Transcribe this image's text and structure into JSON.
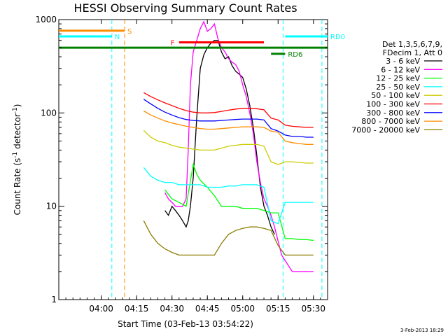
{
  "chart_data": {
    "type": "line",
    "title": "HESSI Observing Summary Count Rates",
    "xlabel": "Start Time (03-Feb-13 03:54:22)",
    "ylabel": "Count Rate (s",
    "ylabel_sup": "-1",
    "ylabel_tail": " detector",
    "ylabel_sup2": "-1",
    "ylabel_end": ")",
    "ylog": true,
    "ylim": [
      1,
      1000
    ],
    "yticks": [
      {
        "v": 1,
        "label": "1"
      },
      {
        "v": 10,
        "label": "10"
      },
      {
        "v": 100,
        "label": "100"
      },
      {
        "v": 1000,
        "label": "1000"
      }
    ],
    "xlim": [
      -6,
      32
    ],
    "xticks": [
      {
        "v": 0,
        "label": "04:00"
      },
      {
        "v": 5,
        "label": "04:15"
      },
      {
        "v": 10,
        "label": "04:30"
      },
      {
        "v": 15,
        "label": "04:45"
      },
      {
        "v": 20,
        "label": "05:00"
      },
      {
        "v": 25,
        "label": "05:15"
      },
      {
        "v": 30,
        "label": "05:30"
      }
    ],
    "legend": {
      "header": [
        "Det 1,3,5,6,7,9,",
        "FDecim 1, Att 0"
      ],
      "placement": "right"
    },
    "series": [
      {
        "name": "3 - 6 keV",
        "color": "#000000",
        "x": [
          9.0,
          9.5,
          10.0,
          10.5,
          11.0,
          11.5,
          12.0,
          12.3,
          12.6,
          13.0,
          13.5,
          14.0,
          14.5,
          15.0,
          15.5,
          16.0,
          16.5,
          17.0,
          17.5,
          18.0,
          18.5,
          19.0,
          19.5,
          20.0,
          20.5,
          21.0,
          21.5,
          22.0,
          22.5,
          23.0,
          23.5,
          24.0,
          24.5
        ],
        "y": [
          9,
          8,
          10,
          9,
          8,
          7,
          6,
          7,
          10,
          20,
          90,
          300,
          420,
          500,
          560,
          600,
          600,
          450,
          380,
          400,
          320,
          280,
          260,
          240,
          180,
          120,
          70,
          35,
          16,
          10,
          8,
          6,
          5
        ]
      },
      {
        "name": "6 - 12 keV",
        "color": "#ff00ff",
        "x": [
          9.0,
          9.5,
          10.0,
          10.5,
          11.0,
          11.5,
          12.0,
          12.3,
          12.6,
          13.0,
          13.5,
          14.0,
          14.5,
          15.0,
          15.5,
          16.0,
          16.5,
          17.0,
          17.5,
          18.0,
          18.5,
          19.0,
          19.5,
          20.0,
          20.5,
          21.0,
          21.5,
          22.0,
          22.5,
          23.0,
          23.5,
          24.0,
          24.5,
          25.5,
          27.0,
          28.5,
          30.0
        ],
        "y": [
          14,
          12,
          11,
          10,
          10,
          10,
          12,
          40,
          200,
          450,
          600,
          800,
          950,
          750,
          800,
          900,
          620,
          500,
          450,
          380,
          350,
          330,
          280,
          200,
          150,
          100,
          60,
          30,
          18,
          12,
          10,
          8,
          6,
          3,
          2,
          2,
          2
        ]
      },
      {
        "name": "12 - 25 keV",
        "color": "#00ff00",
        "x": [
          9.0,
          10.0,
          11.0,
          12.0,
          13.0,
          13.5,
          14.0,
          15.0,
          16.0,
          17.0,
          18.0,
          19.0,
          20.0,
          21.0,
          22.0,
          23.0,
          24.0,
          25.0,
          26.0,
          27.0,
          28.0,
          29.0,
          30.0
        ],
        "y": [
          15,
          12,
          11,
          10,
          28,
          22,
          19,
          16,
          13,
          10,
          10,
          10,
          9.5,
          9.5,
          9.5,
          9.0,
          8.5,
          8.5,
          4.5,
          4.5,
          4.4,
          4.4,
          4.3
        ]
      },
      {
        "name": "25 - 50 keV",
        "color": "#00ffff",
        "x": [
          6.0,
          7.0,
          8.0,
          9.0,
          10.0,
          11.0,
          12.0,
          13.0,
          14.0,
          15.0,
          16.0,
          17.0,
          18.0,
          19.0,
          20.0,
          21.0,
          22.0,
          23.0,
          24.0,
          25.0,
          26.0,
          27.0,
          28.0,
          29.0,
          30.0
        ],
        "y": [
          26,
          21,
          19,
          18,
          18,
          17,
          17,
          17,
          17,
          16,
          16,
          16,
          16.5,
          16.5,
          17,
          17,
          17,
          16,
          7,
          6.5,
          11,
          11,
          11,
          11,
          11
        ]
      },
      {
        "name": "50 - 100 keV",
        "color": "#cccc00",
        "x": [
          6.0,
          7.0,
          8.0,
          9.0,
          10.0,
          11.0,
          12.0,
          13.0,
          14.0,
          15.0,
          16.0,
          17.0,
          18.0,
          19.0,
          20.0,
          21.0,
          22.0,
          23.0,
          24.0,
          25.0,
          26.0,
          27.0,
          28.0,
          29.0,
          30.0
        ],
        "y": [
          65,
          55,
          50,
          48,
          45,
          43,
          42,
          41,
          40,
          40,
          40,
          42,
          44,
          45,
          46,
          46,
          46,
          44,
          30,
          28,
          30,
          30,
          29.5,
          29,
          29
        ]
      },
      {
        "name": "100 - 300 keV",
        "color": "#ff0000",
        "x": [
          6.0,
          7.0,
          8.0,
          9.0,
          10.0,
          11.0,
          12.0,
          13.0,
          14.0,
          15.0,
          16.0,
          17.0,
          18.0,
          19.0,
          20.0,
          21.0,
          22.0,
          23.0,
          24.0,
          25.0,
          26.0,
          27.0,
          28.0,
          29.0,
          30.0
        ],
        "y": [
          165,
          150,
          138,
          128,
          120,
          112,
          106,
          102,
          100,
          100,
          101,
          104,
          107,
          110,
          112,
          112,
          111,
          108,
          88,
          84,
          74,
          72,
          71,
          70,
          70
        ]
      },
      {
        "name": "300 - 800 keV",
        "color": "#0000ff",
        "x": [
          6.0,
          7.0,
          8.0,
          9.0,
          10.0,
          11.0,
          12.0,
          13.0,
          14.0,
          15.0,
          16.0,
          17.0,
          18.0,
          19.0,
          20.0,
          21.0,
          22.0,
          23.0,
          24.0,
          25.0,
          26.0,
          27.0,
          28.0,
          29.0,
          30.0
        ],
        "y": [
          140,
          125,
          112,
          102,
          95,
          89,
          85,
          83,
          82,
          82,
          82,
          83,
          84,
          85,
          86,
          86,
          86,
          84,
          68,
          64,
          58,
          56,
          56,
          55,
          55
        ]
      },
      {
        "name": "800 - 7000 keV",
        "color": "#ff8c00",
        "x": [
          6.0,
          7.0,
          8.0,
          9.0,
          10.0,
          11.0,
          12.0,
          13.0,
          14.0,
          15.0,
          16.0,
          17.0,
          18.0,
          19.0,
          20.0,
          21.0,
          22.0,
          23.0,
          24.0,
          25.0,
          26.0,
          27.0,
          28.0,
          29.0,
          30.0
        ],
        "y": [
          105,
          95,
          88,
          82,
          78,
          75,
          72,
          70,
          68,
          67,
          67,
          68,
          69,
          70,
          71,
          71,
          71,
          70,
          64,
          62,
          50,
          48,
          47,
          46,
          46
        ]
      },
      {
        "name": "7000 - 20000 keV",
        "color": "#8b7d00",
        "x": [
          6.0,
          7.0,
          8.0,
          9.0,
          10.0,
          11.0,
          12.0,
          13.0,
          14.0,
          15.0,
          16.0,
          17.0,
          18.0,
          19.0,
          20.0,
          21.0,
          22.0,
          23.0,
          24.0,
          25.0,
          26.0,
          27.0,
          28.0,
          29.0,
          30.0
        ],
        "y": [
          7,
          5,
          4,
          3.5,
          3.2,
          3.0,
          3.0,
          3.0,
          3.0,
          3.0,
          3.0,
          4.0,
          5.0,
          5.5,
          5.8,
          6.0,
          6.0,
          5.8,
          5.5,
          3.8,
          3.0,
          3.0,
          3.0,
          3.0,
          3.0
        ]
      }
    ],
    "attenuator_flags": [
      {
        "label": "S",
        "color": "#ff8c00",
        "x0": -6.0,
        "x1": 3.3,
        "y": 760
      },
      {
        "label": "N",
        "color": "#00ffff",
        "x0": -6.0,
        "x1": 1.5,
        "y": 660
      },
      {
        "label": "F",
        "color": "#ff0000",
        "x0": 11.0,
        "x1": 23.0,
        "y": 570
      },
      {
        "label": "",
        "color": "#008000",
        "x0": -6.0,
        "x1": 32.0,
        "y": 500
      },
      {
        "label": "RD0",
        "color": "#00ffff",
        "x0": 26.0,
        "x1": 32.0,
        "y": 660
      },
      {
        "label": "RD6",
        "color": "#008000",
        "x0": 24.0,
        "x1": 26.0,
        "y": 430
      }
    ],
    "vlines": [
      {
        "x": 3.3,
        "color": "#ff8c00"
      },
      {
        "x": 1.5,
        "color": "#00ffff"
      },
      {
        "x": 25.7,
        "color": "#00ffff"
      },
      {
        "x": 31.2,
        "color": "#00ffff"
      }
    ]
  },
  "footer": {
    "stamp": "3-Feb-2013 18:29"
  }
}
